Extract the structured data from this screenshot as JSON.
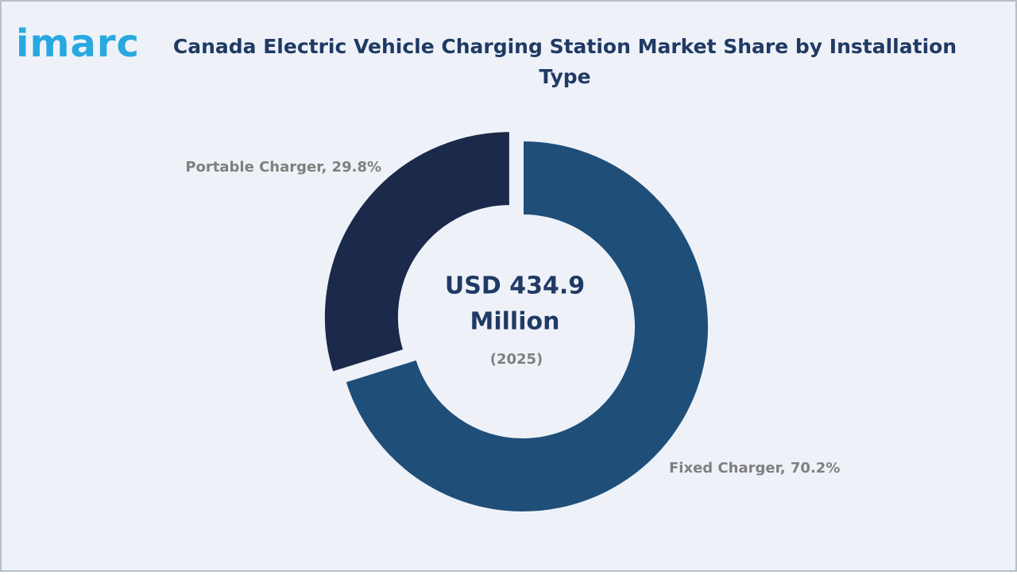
{
  "logo": "imarc",
  "chart_data": {
    "type": "donut",
    "title": "Canada Electric Vehicle Charging Station Market Share by Installation Type",
    "labels": [
      "Fixed Charger, 70.2%",
      "Portable Charger, 29.8%"
    ],
    "values": [
      70.2,
      29.8
    ],
    "colors": [
      "#1f4e79",
      "#1b2a4a"
    ],
    "center_lines": [
      "USD 434.9",
      "Million"
    ],
    "center_note": "(2025)"
  }
}
